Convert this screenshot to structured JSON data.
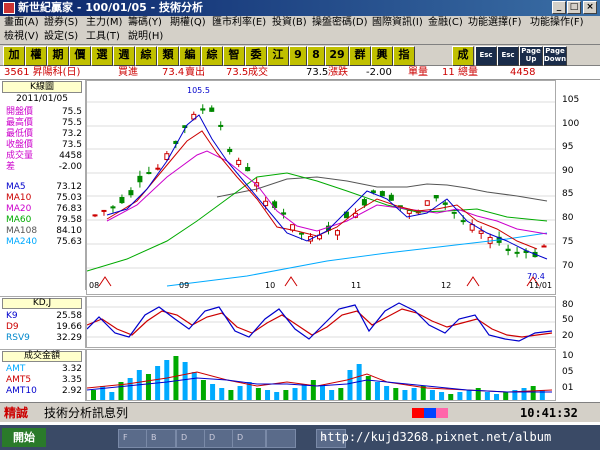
{
  "window": {
    "title": "新世紀贏家 - 100/01/05 - 技術分析"
  },
  "menu": {
    "row1": [
      "畫面(A)",
      "證券(S)",
      "主力(M)",
      "籌碼(Y)",
      "期權(Q)",
      "匯市利率(E)",
      "投資(B)",
      "操盤密碼(D)",
      "國際資訊(I)",
      "金融(C)",
      "功能選擇(F)",
      "功能操作(F)"
    ],
    "row2": [
      "檢視(V)",
      "設定(S)",
      "工具(T)",
      "說明(H)"
    ]
  },
  "toolbar": {
    "buttons": [
      "加",
      "權",
      "期",
      "價",
      "選",
      "週",
      "綜",
      "類",
      "編",
      "綜",
      "智",
      "委",
      "江",
      "9",
      "8",
      "29",
      "群",
      "興",
      "指",
      "成"
    ],
    "dark_buttons": [
      "Esc",
      "Esc",
      "Page Up",
      "Page Down"
    ]
  },
  "quote": {
    "symbol": "3561 昇陽科(日)",
    "bid_label": "買進",
    "bid": "73.4",
    "ask_label": "賣出",
    "last": "73.5",
    "last_label": "成交",
    "change_price": "73.5",
    "change_label": "漲跌",
    "change": "-2.00",
    "unit_label": "單量",
    "unit": "11",
    "total_label": "總量",
    "total": "4458"
  },
  "legend": {
    "header": "K線圖",
    "date": "2011/01/05",
    "rows": [
      {
        "label": "開盤價",
        "value": "75.5"
      },
      {
        "label": "最高價",
        "value": "75.5"
      },
      {
        "label": "最低價",
        "value": "73.2"
      },
      {
        "label": "收盤價",
        "value": "73.5"
      },
      {
        "label": "成交量",
        "value": "4458"
      },
      {
        "label": "差",
        "value": "-2.00"
      }
    ],
    "ma": [
      {
        "label": "MA5",
        "value": "73.12",
        "color": "#0000cc"
      },
      {
        "label": "MA10",
        "value": "75.03",
        "color": "#cc0000"
      },
      {
        "label": "MA20",
        "value": "76.83",
        "color": "#cc00cc"
      },
      {
        "label": "MA60",
        "value": "79.58",
        "color": "#00aa00"
      },
      {
        "label": "MA108",
        "value": "84.10",
        "color": "#555555"
      },
      {
        "label": "MA240",
        "value": "75.63",
        "color": "#00aaff"
      }
    ]
  },
  "price_axis": [
    "105",
    "100",
    "95",
    "90",
    "85",
    "80",
    "75",
    "70"
  ],
  "x_labels": [
    "08",
    "09",
    "10",
    "11",
    "12",
    "11/01"
  ],
  "annotations": {
    "high": "105.5",
    "low": "70.4"
  },
  "kd": {
    "header": "KD,J",
    "rows": [
      {
        "label": "K9",
        "value": "25.58",
        "color": "#0000cc"
      },
      {
        "label": "D9",
        "value": "19.66",
        "color": "#cc0000"
      },
      {
        "label": "RSV9",
        "value": "32.29",
        "color": "#0088cc"
      }
    ],
    "axis": [
      "80",
      "50",
      "20"
    ]
  },
  "volume": {
    "header": "成交金額",
    "rows": [
      {
        "label": "AMT",
        "value": "3.32",
        "color": "#00aaff"
      },
      {
        "label": "AMT5",
        "value": "3.35",
        "color": "#cc0000"
      },
      {
        "label": "AMT10",
        "value": "2.92",
        "color": "#0000cc"
      }
    ],
    "axis": [
      "10",
      "05",
      "01"
    ]
  },
  "status": {
    "label": "精誠",
    "message": "技術分析訊息列",
    "time": "10:41:32"
  },
  "taskbar": {
    "start": "開始",
    "items": [
      "F",
      "B",
      "D",
      "D",
      "D",
      "",
      "3",
      ""
    ],
    "watermark": "http://kujd3268.pixnet.net/album"
  },
  "colors": {
    "up": "#cc0000",
    "down": "#008800",
    "title_bg": "#0a246a"
  }
}
